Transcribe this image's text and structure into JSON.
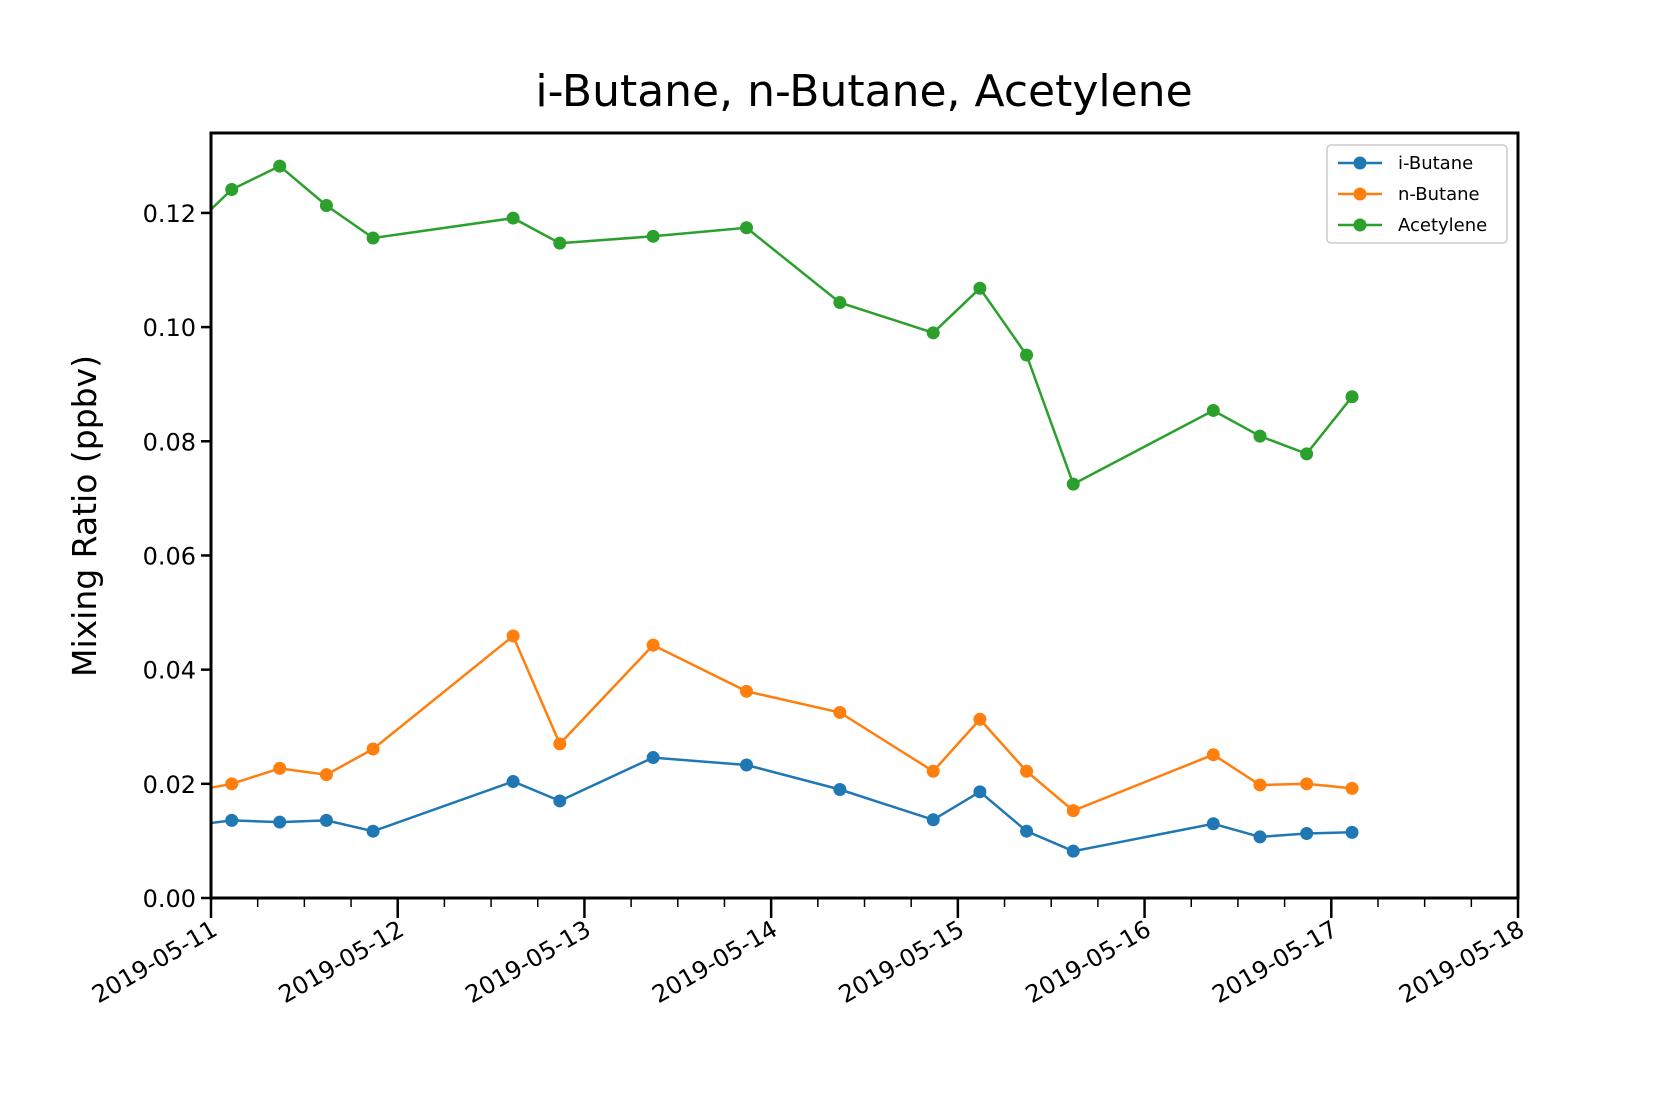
{
  "chart_data": {
    "type": "line",
    "title": "i-Butane, n-Butane, Acetylene",
    "xlabel": "",
    "ylabel": "Mixing Ratio (ppbv)",
    "x_axis_type": "date",
    "xlim": [
      "2019-05-11",
      "2019-05-18"
    ],
    "ylim": [
      0,
      0.134
    ],
    "x_ticks": [
      "2019-05-11",
      "2019-05-12",
      "2019-05-13",
      "2019-05-14",
      "2019-05-15",
      "2019-05-16",
      "2019-05-17",
      "2019-05-18"
    ],
    "y_ticks": [
      "0.00",
      "0.02",
      "0.04",
      "0.06",
      "0.08",
      "0.10",
      "0.12"
    ],
    "x_tick_label_rotation_deg": 30,
    "minor_x_ticks_per_day": 4,
    "grid": false,
    "legend_position": "top-right",
    "marker": "circle",
    "x": [
      "2019-05-10 22:00",
      "2019-05-11 02:40",
      "2019-05-11 08:50",
      "2019-05-11 14:50",
      "2019-05-11 20:50",
      "2019-05-12 14:50",
      "2019-05-12 20:50",
      "2019-05-13 08:50",
      "2019-05-13 20:50",
      "2019-05-14 08:50",
      "2019-05-14 20:50",
      "2019-05-15 02:50",
      "2019-05-15 08:50",
      "2019-05-15 14:50",
      "2019-05-16 08:50",
      "2019-05-16 14:50",
      "2019-05-16 20:50",
      "2019-05-17 02:40"
    ],
    "series": [
      {
        "name": "i-Butane",
        "color": "#1f77b4",
        "values": [
          0.0128,
          0.0136,
          0.0133,
          0.0136,
          0.0117,
          0.0204,
          0.017,
          0.0246,
          0.0233,
          0.019,
          0.0137,
          0.0186,
          0.0117,
          0.0082,
          0.013,
          0.0107,
          0.0113,
          0.0115
        ]
      },
      {
        "name": "n-Butane",
        "color": "#ff7f0e",
        "values": [
          0.0188,
          0.02,
          0.0227,
          0.0216,
          0.0261,
          0.0459,
          0.027,
          0.0443,
          0.0362,
          0.0325,
          0.0222,
          0.0313,
          0.0222,
          0.0153,
          0.0251,
          0.0198,
          0.02,
          0.0192
        ]
      },
      {
        "name": "Acetylene",
        "color": "#2ca02c",
        "values": [
          0.118,
          0.1241,
          0.1282,
          0.1213,
          0.1156,
          0.1191,
          0.1147,
          0.1159,
          0.1174,
          0.1043,
          0.099,
          0.1068,
          0.0951,
          0.0725,
          0.0854,
          0.0809,
          0.0778,
          0.0878
        ]
      }
    ]
  }
}
